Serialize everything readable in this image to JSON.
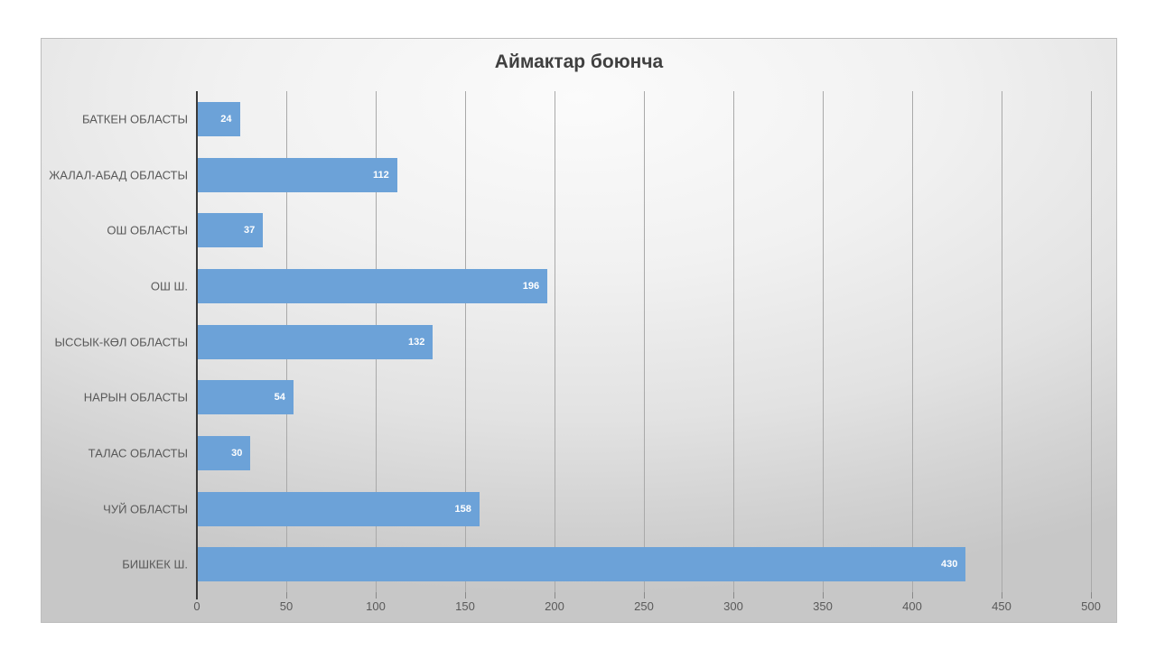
{
  "page": {
    "background": "#ffffff"
  },
  "chart_data": {
    "type": "bar",
    "orientation": "horizontal",
    "title": "Аймактар боюнча",
    "categories": [
      "БАТКЕН ОБЛАСТЫ",
      "ЖАЛАЛ-АБАД ОБЛАСТЫ",
      "ОШ ОБЛАСТЫ",
      "ОШ Ш.",
      "ЫССЫК-КӨЛ ОБЛАСТЫ",
      "НАРЫН ОБЛАСТЫ",
      "ТАЛАС ОБЛАСТЫ",
      "ЧУЙ ОБЛАСТЫ",
      "БИШКЕК Ш."
    ],
    "values": [
      24,
      112,
      37,
      196,
      132,
      54,
      30,
      158,
      430
    ],
    "xlim": [
      0,
      500
    ],
    "x_ticks": [
      0,
      50,
      100,
      150,
      200,
      250,
      300,
      350,
      400,
      450,
      500
    ],
    "grid": true,
    "legend": false,
    "data_labels": "inside-end",
    "xlabel": "",
    "ylabel": "",
    "colors": {
      "bar": "#6ca2d8",
      "title": "#404040",
      "axis_line": "#3a3a3a",
      "gridline": "#a9a9a9",
      "tick_mark": "#898989",
      "tick_label": "#595959",
      "category_label": "#595959",
      "value_label": "#ffffff"
    }
  }
}
